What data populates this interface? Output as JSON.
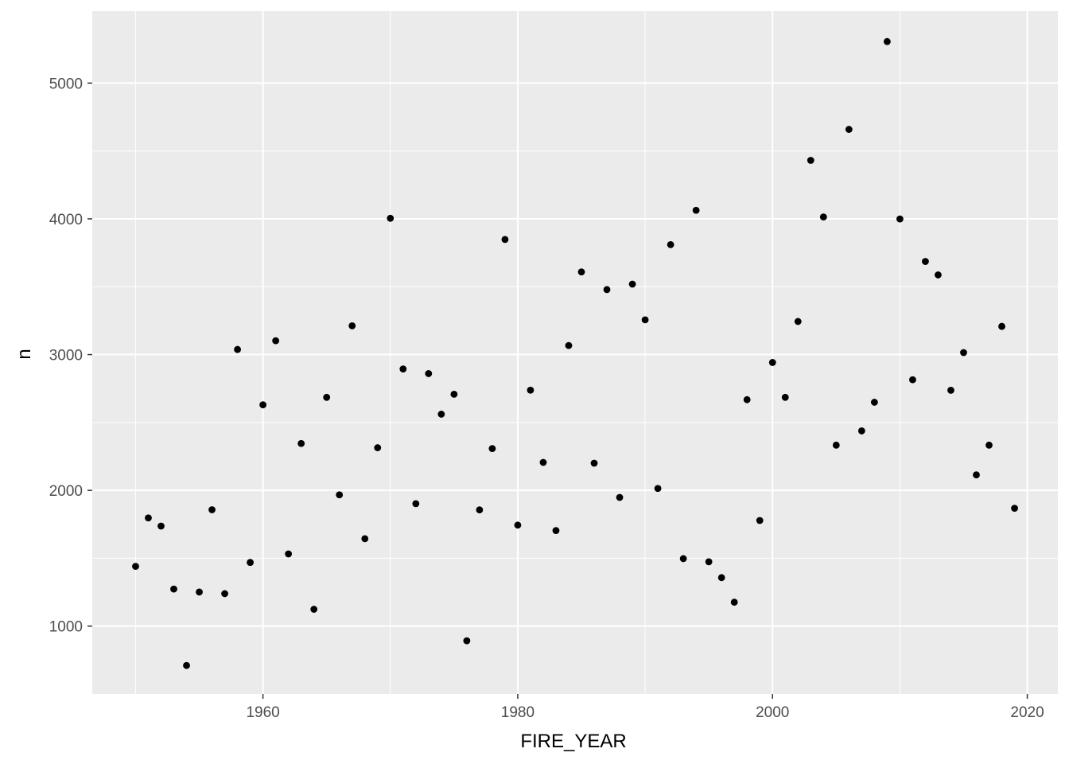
{
  "chart_data": {
    "type": "scatter",
    "title": "",
    "xlabel": "FIRE_YEAR",
    "ylabel": "n",
    "xlim": [
      1946.6,
      2022.4
    ],
    "ylim": [
      500,
      5530
    ],
    "x_ticks": [
      1960,
      1980,
      2000,
      2020
    ],
    "x_tick_labels": [
      "1960",
      "1980",
      "2000",
      "2020"
    ],
    "x_minor_ticks": [
      1950,
      1970,
      1990,
      2010
    ],
    "y_ticks": [
      1000,
      2000,
      3000,
      4000,
      5000
    ],
    "y_tick_labels": [
      "1000",
      "2000",
      "3000",
      "4000",
      "5000"
    ],
    "y_minor_ticks": [
      1500,
      2500,
      3500,
      4500
    ],
    "grid": true,
    "legend": "none",
    "colors": {
      "panel": "#ebebeb",
      "grid": "#ffffff",
      "point": "#000000"
    },
    "x": [
      1950,
      1951,
      1952,
      1953,
      1954,
      1955,
      1956,
      1957,
      1958,
      1959,
      1960,
      1961,
      1962,
      1963,
      1964,
      1965,
      1966,
      1967,
      1968,
      1969,
      1970,
      1971,
      1972,
      1973,
      1974,
      1975,
      1976,
      1977,
      1978,
      1979,
      1980,
      1981,
      1982,
      1983,
      1984,
      1985,
      1986,
      1987,
      1988,
      1989,
      1990,
      1991,
      1992,
      1993,
      1994,
      1995,
      1996,
      1997,
      1998,
      1999,
      2000,
      2001,
      2002,
      2003,
      2004,
      2005,
      2006,
      2007,
      2008,
      2009,
      2010,
      2011,
      2012,
      2013,
      2014,
      2015,
      2016,
      2017,
      2018,
      2019
    ],
    "y": [
      1440,
      1797,
      1737,
      1273,
      710,
      1251,
      1857,
      1239,
      3038,
      1469,
      2630,
      3102,
      1532,
      2345,
      1124,
      2685,
      1967,
      3212,
      1644,
      2314,
      4004,
      2894,
      1902,
      2860,
      2561,
      2708,
      892,
      1856,
      2308,
      3848,
      1744,
      2738,
      2206,
      1704,
      3067,
      3609,
      2200,
      3479,
      1948,
      3519,
      3256,
      2014,
      3810,
      1497,
      4063,
      1474,
      1357,
      1176,
      2668,
      1778,
      2942,
      2685,
      3244,
      4431,
      4014,
      2333,
      4659,
      2438,
      2649,
      5306,
      3999,
      2815,
      3686,
      3587,
      2737,
      3015,
      2114,
      2333,
      3208,
      1868
    ]
  }
}
